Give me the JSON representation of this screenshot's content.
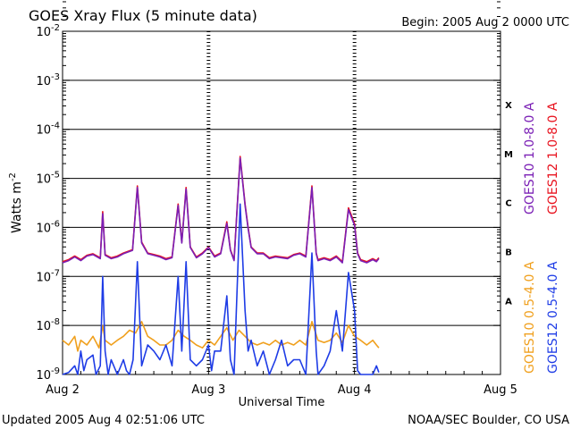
{
  "chart_data": {
    "type": "line",
    "title": "GOES Xray Flux (5 minute data)",
    "begin": "Begin:  2005 Aug 2 0000 UTC",
    "xlabel": "Universal Time",
    "ylabel_main": "Watts m",
    "ylabel_exp": "-2",
    "y_scale": "log",
    "ylim": [
      1e-09,
      0.01
    ],
    "xlim": [
      0,
      72
    ],
    "x_unit": "hours since 2005 Aug 2 0000 UTC",
    "x_ticks": [
      {
        "x": 0,
        "label": "Aug 2"
      },
      {
        "x": 24,
        "label": "Aug 3"
      },
      {
        "x": 48,
        "label": "Aug 4"
      },
      {
        "x": 72,
        "label": "Aug 5"
      }
    ],
    "y_ticks": [
      {
        "value": 0.01,
        "base": "10",
        "exp": "-2"
      },
      {
        "value": 0.001,
        "base": "10",
        "exp": "-3"
      },
      {
        "value": 0.0001,
        "base": "10",
        "exp": "-4"
      },
      {
        "value": 1e-05,
        "base": "10",
        "exp": "-5"
      },
      {
        "value": 1e-06,
        "base": "10",
        "exp": "-6"
      },
      {
        "value": 1e-07,
        "base": "10",
        "exp": "-7"
      },
      {
        "value": 1e-08,
        "base": "10",
        "exp": "-8"
      },
      {
        "value": 1e-09,
        "base": "10",
        "exp": "-9"
      }
    ],
    "flare_classes": [
      {
        "label": "X",
        "value": 0.00032
      },
      {
        "label": "M",
        "value": 3.2e-05
      },
      {
        "label": "C",
        "value": 3.2e-06
      },
      {
        "label": "B",
        "value": 3.2e-07
      },
      {
        "label": "A",
        "value": 3.2e-08
      }
    ],
    "grid": true,
    "legend_right_top": [
      {
        "text": "GOES10 1.0-8.0 A",
        "color": "#7a1fb5"
      },
      {
        "text": "GOES12 1.0-8.0 A",
        "color": "#e8121e"
      }
    ],
    "legend_right_bottom": [
      {
        "text": "GOES10 0.5-4.0 A",
        "color": "#f0a01e"
      },
      {
        "text": "GOES12 0.5-4.0 A",
        "color": "#1e3ce6"
      }
    ],
    "series": [
      {
        "name": "GOES12 1.0-8.0 A",
        "color": "#e8121e",
        "points": [
          [
            0,
            2e-07
          ],
          [
            1,
            2.2e-07
          ],
          [
            2,
            2.6e-07
          ],
          [
            3,
            2.2e-07
          ],
          [
            4,
            2.7e-07
          ],
          [
            5,
            2.9e-07
          ],
          [
            6.2,
            2.4e-07
          ],
          [
            6.6,
            2.1e-06
          ],
          [
            7,
            2.8e-07
          ],
          [
            8,
            2.4e-07
          ],
          [
            9,
            2.6e-07
          ],
          [
            10,
            3e-07
          ],
          [
            11.5,
            3.5e-07
          ],
          [
            12.3,
            7e-06
          ],
          [
            13,
            5e-07
          ],
          [
            14,
            3e-07
          ],
          [
            15,
            2.8e-07
          ],
          [
            16,
            2.6e-07
          ],
          [
            17,
            2.3e-07
          ],
          [
            18,
            2.5e-07
          ],
          [
            19,
            3e-06
          ],
          [
            19.6,
            5e-07
          ],
          [
            20.3,
            6.5e-06
          ],
          [
            21,
            4e-07
          ],
          [
            22,
            2.5e-07
          ],
          [
            23,
            3e-07
          ],
          [
            24,
            4e-07
          ],
          [
            25,
            2.6e-07
          ],
          [
            26,
            3e-07
          ],
          [
            27,
            1.3e-06
          ],
          [
            27.6,
            3.5e-07
          ],
          [
            28.2,
            2.2e-07
          ],
          [
            29.2,
            2.8e-05
          ],
          [
            30,
            3e-06
          ],
          [
            30.5,
            1e-06
          ],
          [
            31,
            4e-07
          ],
          [
            32,
            3e-07
          ],
          [
            33,
            3e-07
          ],
          [
            34,
            2.4e-07
          ],
          [
            35,
            2.6e-07
          ],
          [
            36,
            2.5e-07
          ],
          [
            37,
            2.4e-07
          ],
          [
            38,
            2.8e-07
          ],
          [
            39,
            3e-07
          ],
          [
            40,
            2.6e-07
          ],
          [
            41,
            7e-06
          ],
          [
            41.7,
            3e-07
          ],
          [
            42,
            2.2e-07
          ],
          [
            43,
            2.4e-07
          ],
          [
            44,
            2.2e-07
          ],
          [
            45,
            2.6e-07
          ],
          [
            46,
            2e-07
          ],
          [
            47,
            2.5e-06
          ],
          [
            48,
            1.2e-06
          ],
          [
            48.5,
            3e-07
          ],
          [
            49,
            2.2e-07
          ],
          [
            50,
            2e-07
          ],
          [
            51,
            2.3e-07
          ],
          [
            51.6,
            2.1e-07
          ],
          [
            52,
            2.4e-07
          ]
        ]
      },
      {
        "name": "GOES10 1.0-8.0 A",
        "color": "#7a1fb5",
        "points": [
          [
            0,
            1.9e-07
          ],
          [
            1,
            2.1e-07
          ],
          [
            2,
            2.5e-07
          ],
          [
            3,
            2.1e-07
          ],
          [
            4,
            2.6e-07
          ],
          [
            5,
            2.8e-07
          ],
          [
            6.2,
            2.3e-07
          ],
          [
            6.6,
            1.9e-06
          ],
          [
            7,
            2.7e-07
          ],
          [
            8,
            2.3e-07
          ],
          [
            9,
            2.5e-07
          ],
          [
            10,
            2.9e-07
          ],
          [
            11.5,
            3.4e-07
          ],
          [
            12.3,
            6.5e-06
          ],
          [
            13,
            4.8e-07
          ],
          [
            14,
            2.9e-07
          ],
          [
            15,
            2.7e-07
          ],
          [
            16,
            2.5e-07
          ],
          [
            17,
            2.2e-07
          ],
          [
            18,
            2.4e-07
          ],
          [
            19,
            2.8e-06
          ],
          [
            19.6,
            4.8e-07
          ],
          [
            20.3,
            6e-06
          ],
          [
            21,
            3.9e-07
          ],
          [
            22,
            2.4e-07
          ],
          [
            23,
            2.9e-07
          ],
          [
            24,
            3.9e-07
          ],
          [
            25,
            2.5e-07
          ],
          [
            26,
            2.9e-07
          ],
          [
            27,
            1.2e-06
          ],
          [
            27.6,
            3.4e-07
          ],
          [
            28.2,
            2.1e-07
          ],
          [
            29.2,
            2.6e-05
          ],
          [
            30,
            2.8e-06
          ],
          [
            30.5,
            9.5e-07
          ],
          [
            31,
            3.9e-07
          ],
          [
            32,
            2.9e-07
          ],
          [
            33,
            2.9e-07
          ],
          [
            34,
            2.3e-07
          ],
          [
            35,
            2.5e-07
          ],
          [
            36,
            2.4e-07
          ],
          [
            37,
            2.3e-07
          ],
          [
            38,
            2.7e-07
          ],
          [
            39,
            2.9e-07
          ],
          [
            40,
            2.5e-07
          ],
          [
            41,
            6.5e-06
          ],
          [
            41.7,
            2.9e-07
          ],
          [
            42,
            2.1e-07
          ],
          [
            43,
            2.3e-07
          ],
          [
            44,
            2.1e-07
          ],
          [
            45,
            2.5e-07
          ],
          [
            46,
            1.9e-07
          ],
          [
            47,
            2.3e-06
          ],
          [
            48,
            1.1e-06
          ],
          [
            48.5,
            2.9e-07
          ],
          [
            49,
            2.1e-07
          ],
          [
            50,
            1.9e-07
          ],
          [
            51,
            2.2e-07
          ],
          [
            51.6,
            2e-07
          ],
          [
            52,
            2.3e-07
          ]
        ]
      },
      {
        "name": "GOES10 0.5-4.0 A",
        "color": "#f0a01e",
        "points": [
          [
            0,
            5e-09
          ],
          [
            1,
            4e-09
          ],
          [
            2,
            6e-09
          ],
          [
            2.5,
            3e-09
          ],
          [
            3,
            5e-09
          ],
          [
            4,
            4e-09
          ],
          [
            5,
            6e-09
          ],
          [
            6,
            3.5e-09
          ],
          [
            6.6,
            1e-08
          ],
          [
            7,
            5e-09
          ],
          [
            8,
            4e-09
          ],
          [
            9,
            5e-09
          ],
          [
            10,
            6e-09
          ],
          [
            11,
            8e-09
          ],
          [
            12,
            7e-09
          ],
          [
            13,
            1.2e-08
          ],
          [
            14,
            6e-09
          ],
          [
            15,
            5e-09
          ],
          [
            16,
            4e-09
          ],
          [
            17,
            4e-09
          ],
          [
            18,
            5e-09
          ],
          [
            19,
            8e-09
          ],
          [
            20,
            6e-09
          ],
          [
            21,
            5e-09
          ],
          [
            22,
            4e-09
          ],
          [
            23,
            3.5e-09
          ],
          [
            24,
            5e-09
          ],
          [
            25,
            4e-09
          ],
          [
            26,
            6e-09
          ],
          [
            27,
            9e-09
          ],
          [
            28,
            5e-09
          ],
          [
            29,
            8e-09
          ],
          [
            30,
            6e-09
          ],
          [
            31,
            4.5e-09
          ],
          [
            32,
            4e-09
          ],
          [
            33,
            4.5e-09
          ],
          [
            34,
            4e-09
          ],
          [
            35,
            5e-09
          ],
          [
            36,
            4e-09
          ],
          [
            37,
            4.5e-09
          ],
          [
            38,
            4e-09
          ],
          [
            39,
            5e-09
          ],
          [
            40,
            4e-09
          ],
          [
            41,
            1.2e-08
          ],
          [
            42,
            5e-09
          ],
          [
            43,
            4.5e-09
          ],
          [
            44,
            5e-09
          ],
          [
            45,
            7e-09
          ],
          [
            46,
            4.5e-09
          ],
          [
            47,
            1e-08
          ],
          [
            48,
            6e-09
          ],
          [
            49,
            5e-09
          ],
          [
            50,
            4e-09
          ],
          [
            51,
            5e-09
          ],
          [
            51.6,
            4e-09
          ],
          [
            52,
            3.5e-09
          ]
        ]
      },
      {
        "name": "GOES12 0.5-4.0 A",
        "color": "#1e3ce6",
        "points": [
          [
            0,
            1e-09
          ],
          [
            1,
            1.1e-09
          ],
          [
            2,
            1.5e-09
          ],
          [
            2.5,
            1e-09
          ],
          [
            3,
            3e-09
          ],
          [
            3.5,
            1.2e-09
          ],
          [
            4,
            2e-09
          ],
          [
            5,
            2.5e-09
          ],
          [
            5.5,
            1e-09
          ],
          [
            6.2,
            1.5e-09
          ],
          [
            6.6,
            1e-07
          ],
          [
            7,
            3e-09
          ],
          [
            7.5,
            1e-09
          ],
          [
            8,
            2e-09
          ],
          [
            9,
            1e-09
          ],
          [
            10,
            2e-09
          ],
          [
            10.5,
            1.2e-09
          ],
          [
            11,
            1e-09
          ],
          [
            11.6,
            2e-09
          ],
          [
            12.3,
            2e-07
          ],
          [
            13,
            1.5e-09
          ],
          [
            14,
            4e-09
          ],
          [
            15,
            3e-09
          ],
          [
            16,
            2e-09
          ],
          [
            17,
            4e-09
          ],
          [
            18,
            1.5e-09
          ],
          [
            19,
            1e-07
          ],
          [
            19.6,
            3e-09
          ],
          [
            20.3,
            2e-07
          ],
          [
            21,
            2e-09
          ],
          [
            22,
            1.5e-09
          ],
          [
            23,
            2e-09
          ],
          [
            24,
            4e-09
          ],
          [
            24.5,
            1.2e-09
          ],
          [
            25,
            3e-09
          ],
          [
            26,
            3e-09
          ],
          [
            27,
            4e-08
          ],
          [
            27.6,
            2e-09
          ],
          [
            28.2,
            1e-09
          ],
          [
            29.2,
            3e-06
          ],
          [
            30,
            2e-08
          ],
          [
            30.5,
            3e-09
          ],
          [
            31,
            5e-09
          ],
          [
            32,
            1.5e-09
          ],
          [
            33,
            3e-09
          ],
          [
            34,
            1e-09
          ],
          [
            35,
            2e-09
          ],
          [
            36,
            5e-09
          ],
          [
            37,
            1.5e-09
          ],
          [
            38,
            2e-09
          ],
          [
            39,
            2e-09
          ],
          [
            40,
            1e-09
          ],
          [
            41,
            3e-07
          ],
          [
            41.7,
            3e-09
          ],
          [
            42,
            1e-09
          ],
          [
            43,
            1.5e-09
          ],
          [
            44,
            3e-09
          ],
          [
            45,
            2e-08
          ],
          [
            46,
            3e-09
          ],
          [
            47,
            1.2e-07
          ],
          [
            48,
            2e-08
          ],
          [
            48.5,
            1.2e-09
          ],
          [
            49,
            1e-09
          ],
          [
            50,
            1e-09
          ],
          [
            51,
            1e-09
          ],
          [
            51.6,
            1.5e-09
          ],
          [
            52,
            1.1e-09
          ]
        ]
      }
    ]
  },
  "footer": {
    "updated": "Updated 2005 Aug  4 02:51:06 UTC",
    "source": "NOAA/SEC Boulder, CO USA"
  }
}
